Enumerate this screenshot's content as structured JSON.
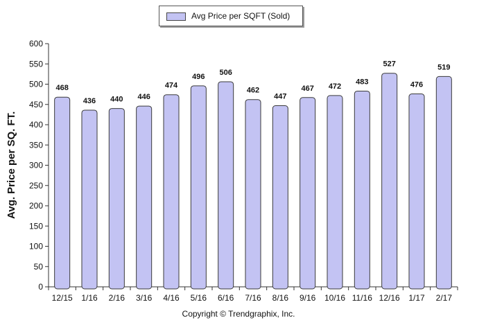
{
  "legend": {
    "label": "Avg Price per SQFT (Sold)"
  },
  "credit": "Copyright © Trendgraphix, Inc.",
  "colors": {
    "bar_fill": "#c3c3f3",
    "bar_stroke": "#3a3a3a",
    "axis": "#333333"
  },
  "chart_data": {
    "type": "bar",
    "title": "",
    "xlabel": "",
    "ylabel": "Avg. Price per SQ. FT.",
    "ylim": [
      0,
      600
    ],
    "yticks": [
      0,
      50,
      100,
      150,
      200,
      250,
      300,
      350,
      400,
      450,
      500,
      550,
      600
    ],
    "grid": false,
    "legend_position": "top-center",
    "categories": [
      "12/15",
      "1/16",
      "2/16",
      "3/16",
      "4/16",
      "5/16",
      "6/16",
      "7/16",
      "8/16",
      "9/16",
      "10/16",
      "11/16",
      "12/16",
      "1/17",
      "2/17"
    ],
    "series": [
      {
        "name": "Avg Price per SQFT (Sold)",
        "values": [
          468,
          436,
          440,
          446,
          474,
          496,
          506,
          462,
          447,
          467,
          472,
          483,
          527,
          476,
          519
        ]
      }
    ]
  }
}
